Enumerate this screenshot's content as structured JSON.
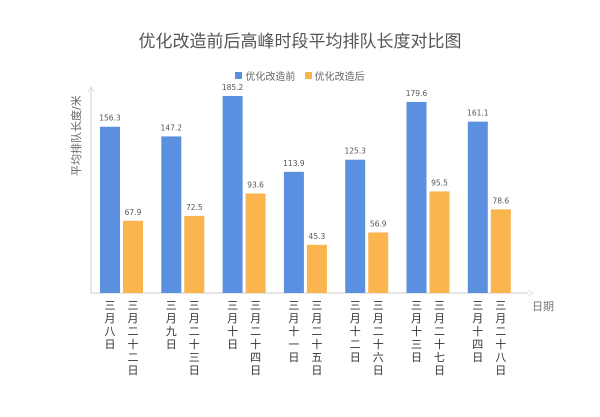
{
  "chart_data": {
    "type": "bar",
    "title": "优化改造前后高峰时段平均排队长度对比图",
    "xlabel": "日期",
    "ylabel": "平均排队长度/米",
    "ylim": [
      0,
      190
    ],
    "grid": false,
    "legend_position": "top",
    "categories": [
      [
        "三月八日",
        "三月二十二日"
      ],
      [
        "三月九日",
        "三月二十三日"
      ],
      [
        "三月十日",
        "三月二十四日"
      ],
      [
        "三月十一日",
        "三月二十五日"
      ],
      [
        "三月十二日",
        "三月二十六日"
      ],
      [
        "三月十三日",
        "三月二十七日"
      ],
      [
        "三月十四日",
        "三月二十八日"
      ]
    ],
    "series": [
      {
        "name": "优化改造前",
        "color": "#5B8FE0",
        "values": [
          156.3,
          147.2,
          185.2,
          113.9,
          125.3,
          179.6,
          161.1
        ]
      },
      {
        "name": "优化改造后",
        "color": "#FBB54E",
        "values": [
          67.9,
          72.5,
          93.6,
          45.3,
          56.9,
          95.5,
          78.6
        ]
      }
    ]
  }
}
